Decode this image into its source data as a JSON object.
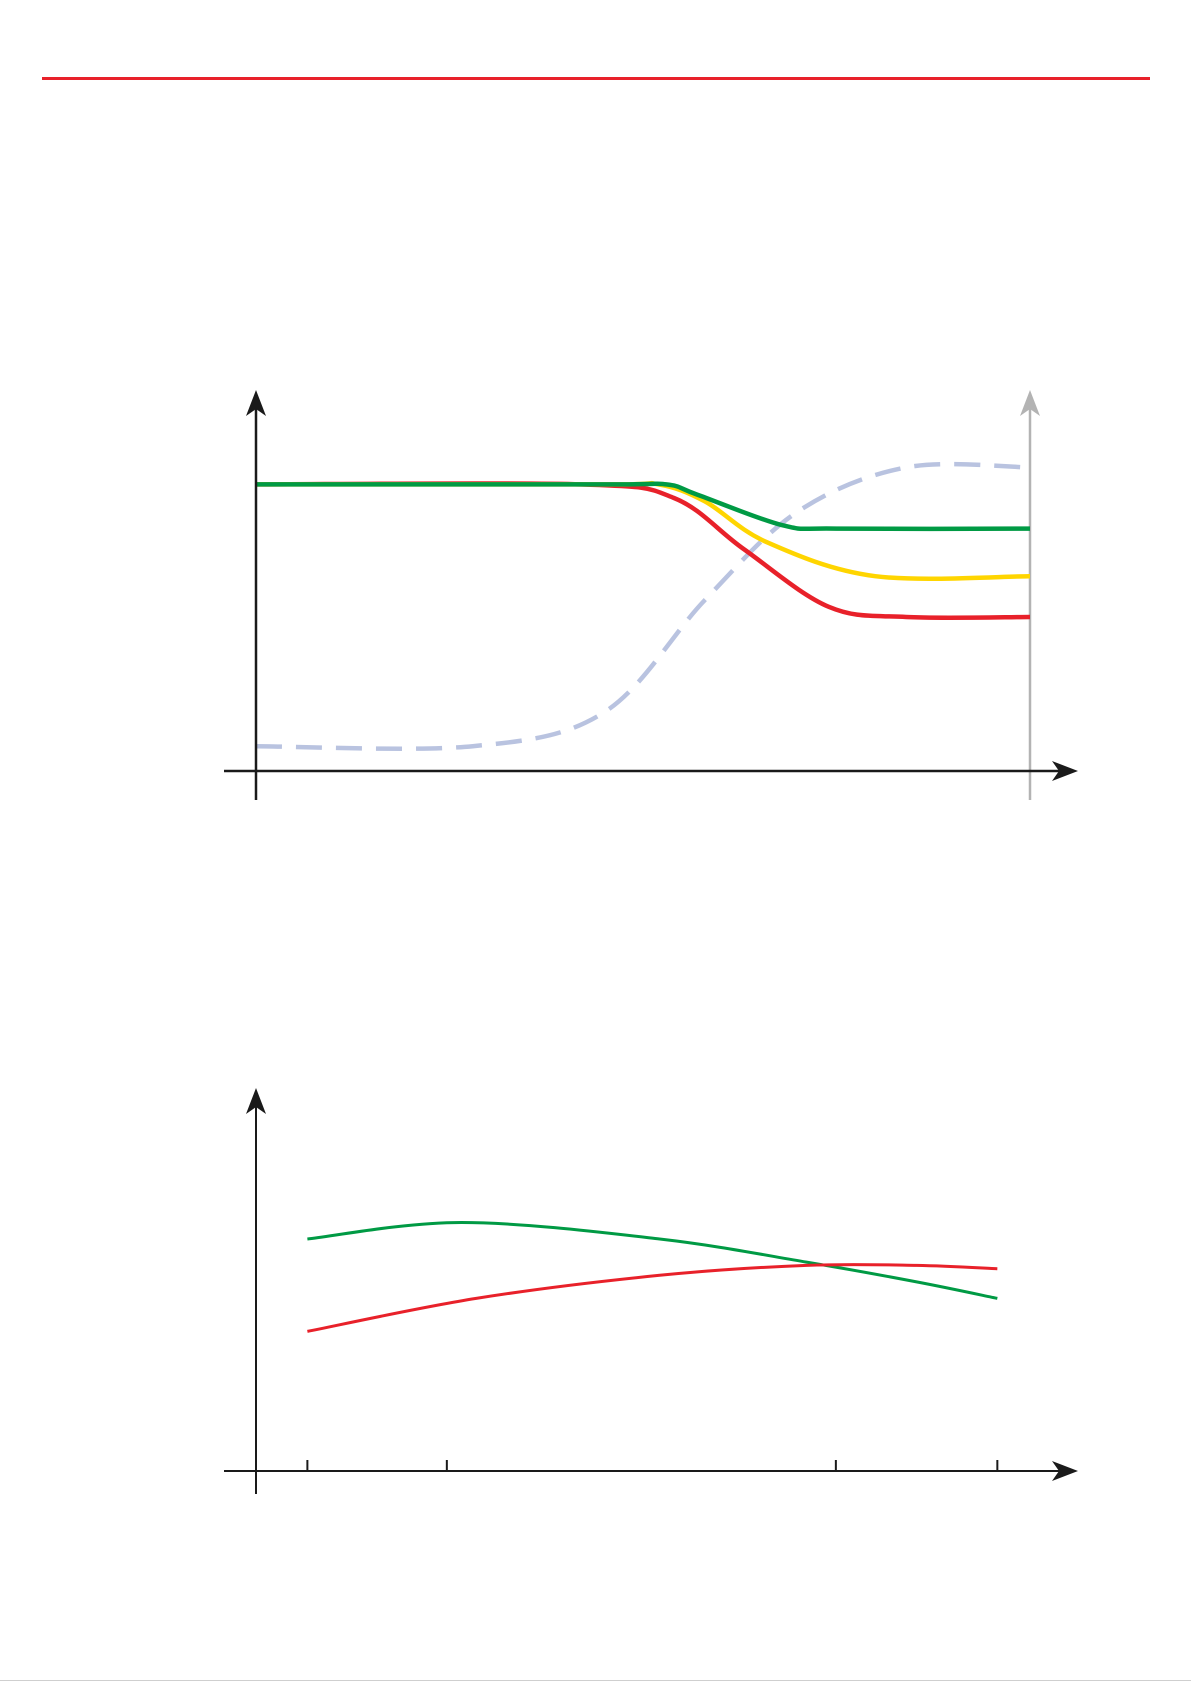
{
  "page": {
    "accent_color": "#e8212a"
  },
  "chart_data": [
    {
      "type": "line",
      "title": "",
      "xlabel": "",
      "ylabel": "",
      "grid": false,
      "xlim": [
        0,
        100
      ],
      "ylim": [
        0,
        100
      ],
      "series": [
        {
          "color": "#009a44",
          "style": "solid",
          "points": [
            [
              0,
              84
            ],
            [
              45,
              84
            ],
            [
              53,
              84
            ],
            [
              57,
              81
            ],
            [
              68,
              72
            ],
            [
              75,
              71
            ],
            [
              100,
              71
            ]
          ]
        },
        {
          "color": "#ffd500",
          "style": "solid",
          "points": [
            [
              0,
              84
            ],
            [
              45,
              84
            ],
            [
              52,
              84
            ],
            [
              58,
              79
            ],
            [
              66,
              67
            ],
            [
              80,
              57
            ],
            [
              100,
              57
            ]
          ]
        },
        {
          "color": "#e8212a",
          "style": "solid",
          "points": [
            [
              0,
              84
            ],
            [
              42,
              84
            ],
            [
              54,
              80
            ],
            [
              63,
              65
            ],
            [
              74,
              48
            ],
            [
              84,
              45
            ],
            [
              100,
              45
            ]
          ]
        },
        {
          "color": "#b9c3e0",
          "style": "dashed",
          "points": [
            [
              0,
              7
            ],
            [
              28,
              7
            ],
            [
              45,
              17
            ],
            [
              58,
              50
            ],
            [
              70,
              76
            ],
            [
              84,
              89
            ],
            [
              100,
              89
            ]
          ]
        }
      ],
      "right_axis": {
        "color": "#b3b3b3"
      }
    },
    {
      "type": "line",
      "title": "",
      "xlabel": "",
      "ylabel": "",
      "grid": false,
      "xlim": [
        0,
        100
      ],
      "ylim": [
        0,
        100
      ],
      "x_ticks": [
        7,
        26,
        79,
        101
      ],
      "series": [
        {
          "color": "#009a44",
          "style": "solid",
          "points": [
            [
              7,
              70
            ],
            [
              28,
              75
            ],
            [
              55,
              70
            ],
            [
              75,
              63
            ],
            [
              90,
              57
            ],
            [
              101,
              52
            ]
          ]
        },
        {
          "color": "#e8212a",
          "style": "solid",
          "points": [
            [
              7,
              42
            ],
            [
              30,
              52
            ],
            [
              55,
              59
            ],
            [
              75,
              62
            ],
            [
              90,
              62
            ],
            [
              101,
              61
            ]
          ]
        }
      ]
    }
  ]
}
